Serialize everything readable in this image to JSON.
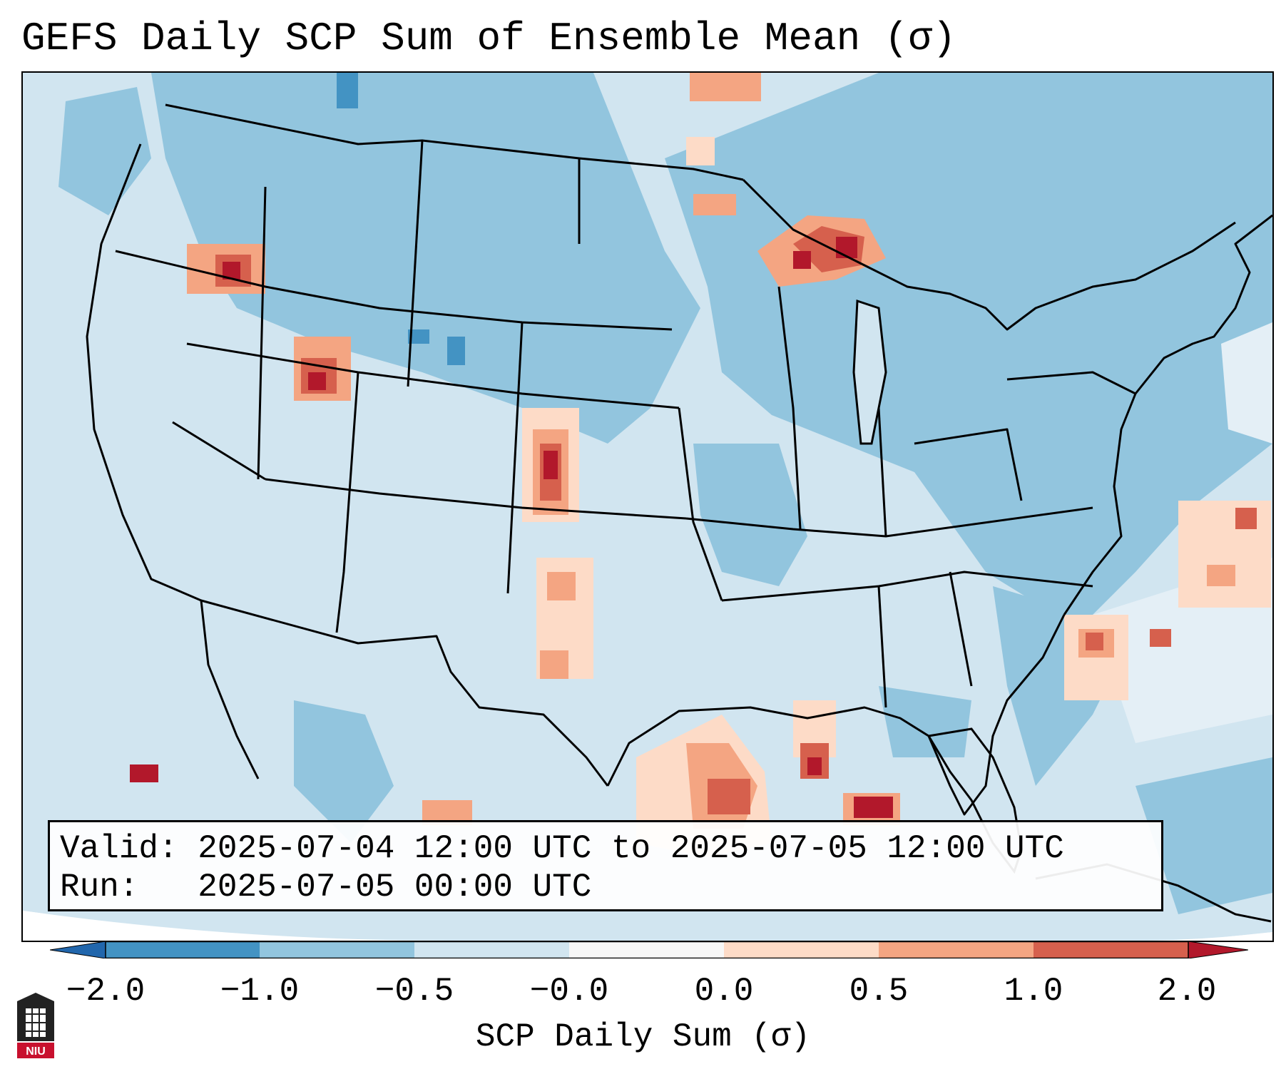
{
  "title": "GEFS Daily SCP Sum of Ensemble Mean (σ)",
  "info": {
    "valid_label": "Valid:",
    "valid_value": "2025-07-04 12:00 UTC to 2025-07-05 12:00 UTC",
    "run_label": "Run:",
    "run_value": "2025-07-05 00:00 UTC"
  },
  "colorbar": {
    "label": "SCP Daily Sum (σ)",
    "ticks": [
      "−2.0",
      "−1.0",
      "−0.5",
      "−0.0",
      "0.0",
      "0.5",
      "1.0",
      "2.0"
    ],
    "colors": [
      "#4393c3",
      "#92c5de",
      "#d1e5f0",
      "#f7f7f7",
      "#fddbc7",
      "#f4a582",
      "#d6604d"
    ],
    "extend_low_color": "#2166ac",
    "extend_high_color": "#b2182b"
  },
  "map": {
    "background_color": "#d1e5f0",
    "outside_color": "#ffffff",
    "region": "CONUS",
    "features": [
      {
        "name": "Lake Superior / Upper Michigan",
        "category": "1.0 to 2.0"
      },
      {
        "name": "Eastern Colorado",
        "category": "1.0 to 2.0"
      },
      {
        "name": "NE Oregon / W Idaho",
        "category": "1.0 to 2.0"
      },
      {
        "name": "Northern Utah",
        "category": "1.0 to 2.0"
      },
      {
        "name": "Northern Gulf of Mexico",
        "category": "1.0 to 2.0"
      },
      {
        "name": "Off Carolina coast",
        "category": "0.5 to 1.0"
      }
    ]
  },
  "logo": {
    "text": "NIU"
  }
}
